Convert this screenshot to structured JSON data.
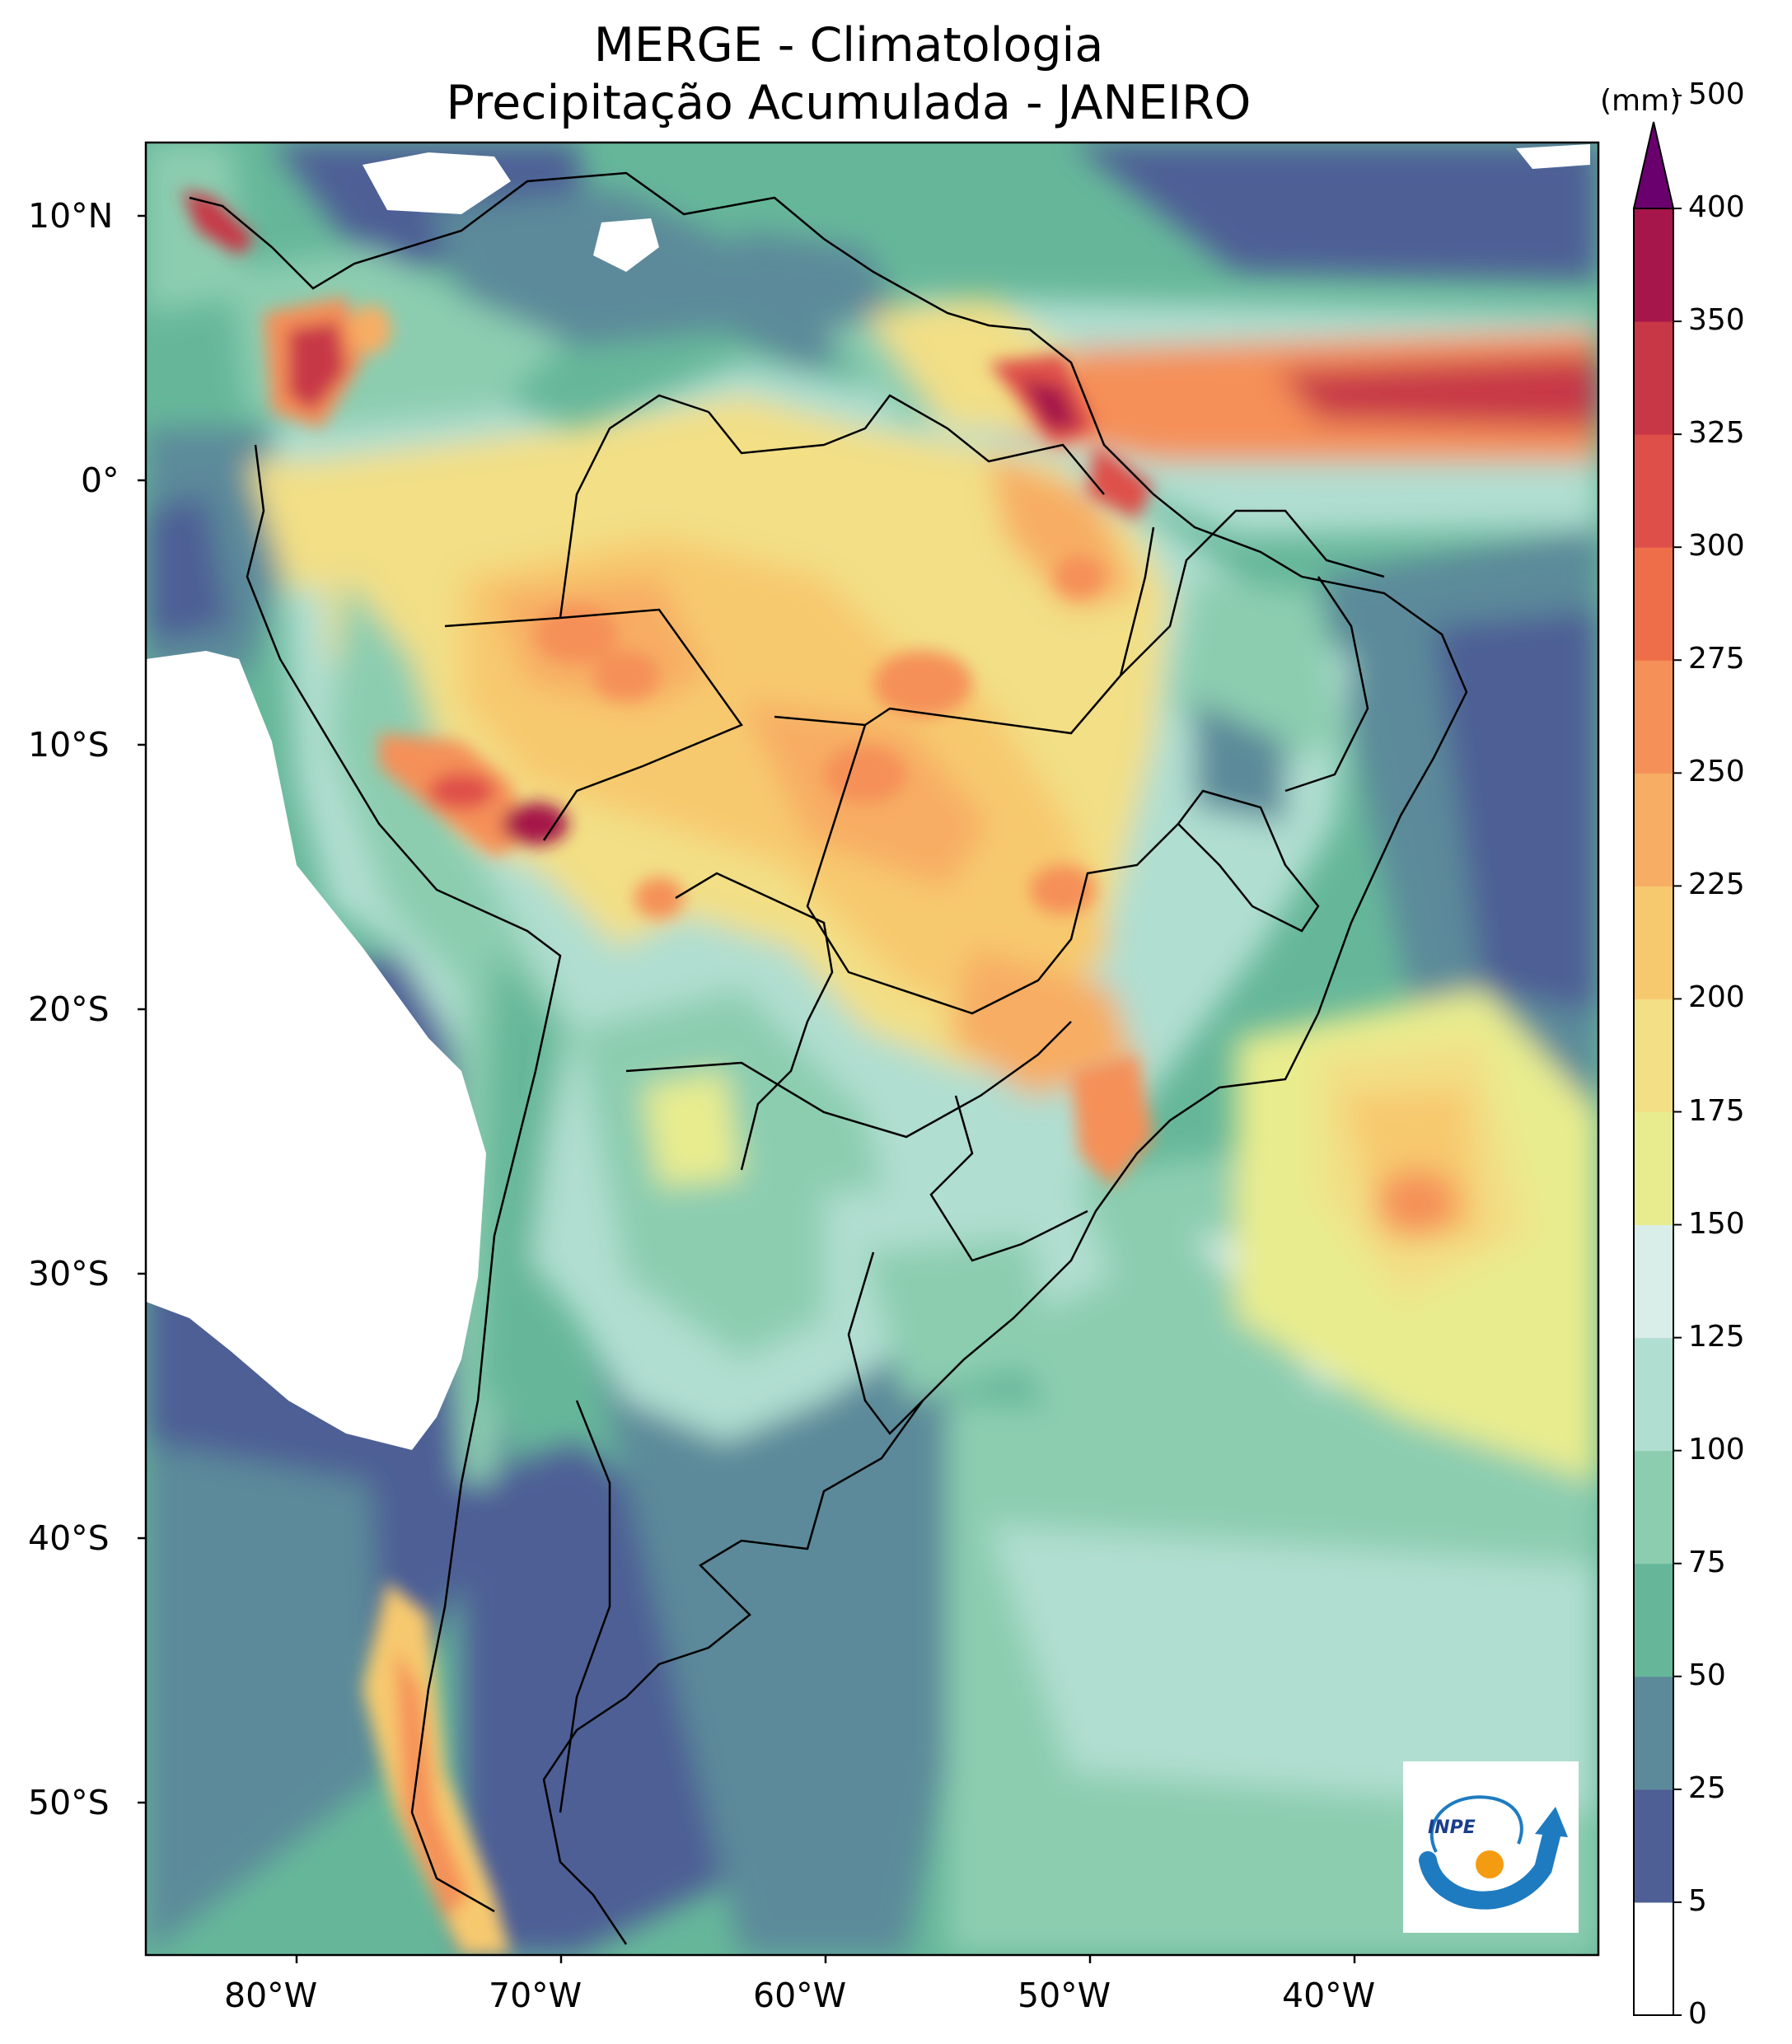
{
  "title": {
    "line1": "MERGE - Climatologia",
    "line2": "Precipitação Acumulada - JANEIRO"
  },
  "axes": {
    "lat_labels": [
      "10°N",
      "0°",
      "10°S",
      "20°S",
      "30°S",
      "40°S",
      "50°S"
    ],
    "lon_labels": [
      "80°W",
      "70°W",
      "60°W",
      "50°W",
      "40°W"
    ]
  },
  "colorbar": {
    "unit": "(mm)",
    "ticks": [
      "0",
      "5",
      "25",
      "50",
      "75",
      "100",
      "125",
      "150",
      "175",
      "200",
      "225",
      "250",
      "275",
      "300",
      "325",
      "350",
      "400",
      "500"
    ],
    "colors": [
      "#ffffff",
      "#4e5f95",
      "#5c8a9a",
      "#66b79a",
      "#8ccdb0",
      "#b0ded0",
      "#d9ede9",
      "#e8ec8e",
      "#f2df86",
      "#f7c96e",
      "#f7ad64",
      "#f59058",
      "#ef6e4a",
      "#df4f4a",
      "#c73746",
      "#a6164a"
    ],
    "extend_color": "#6a006e"
  },
  "logo": {
    "text": "INPE"
  }
}
